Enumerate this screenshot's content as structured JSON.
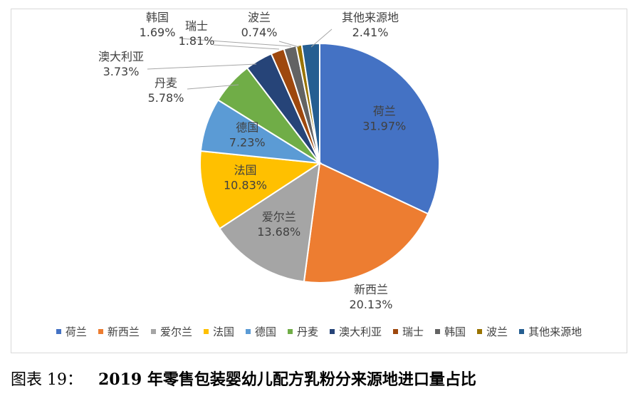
{
  "chart_data": {
    "type": "pie",
    "title": "",
    "categories": [
      "荷兰",
      "新西兰",
      "爱尔兰",
      "法国",
      "德国",
      "丹麦",
      "澳大利亚",
      "瑞士",
      "韩国",
      "波兰",
      "其他来源地"
    ],
    "values": [
      31.97,
      20.13,
      13.68,
      10.83,
      7.23,
      5.78,
      3.73,
      1.81,
      1.69,
      0.74,
      2.41
    ],
    "value_labels": [
      "31.97%",
      "20.13%",
      "13.68%",
      "10.83%",
      "7.23%",
      "5.78%",
      "3.73%",
      "1.81%",
      "1.69%",
      "0.74%",
      "2.41%"
    ],
    "colors": [
      "#4472c4",
      "#ed7d31",
      "#a5a5a5",
      "#ffc000",
      "#5b9bd5",
      "#70ad47",
      "#264478",
      "#9e480e",
      "#636363",
      "#997300",
      "#255e91"
    ],
    "start_angle_deg": 0,
    "direction": "clockwise",
    "legend_position": "bottom",
    "label_style": "category-and-percent"
  },
  "caption": {
    "label": "图表 19：",
    "text": "2019 年零售包装婴幼儿配方乳粉分来源地进口量占比"
  }
}
